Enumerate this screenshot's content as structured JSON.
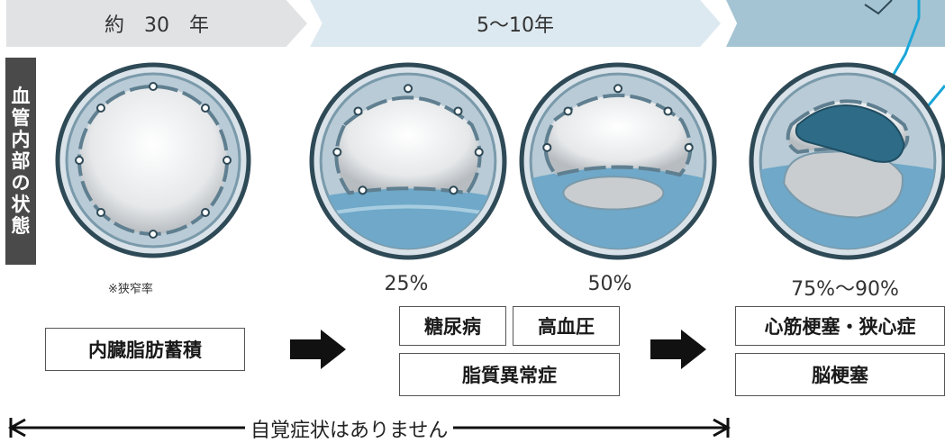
{
  "timeline": {
    "stage1": "約　30　年",
    "stage2": "5〜10年",
    "stage3": ""
  },
  "side_label": "血管内部の状態",
  "stenosis_note": "※狭窄率",
  "percentages": [
    "25%",
    "50%",
    "75%〜90%"
  ],
  "conditions": {
    "visceral_fat": "内臓脂肪蓄積",
    "diabetes": "糖尿病",
    "hypertension": "高血圧",
    "dyslipidemia": "脂質異常症",
    "heart": "心筋梗塞・狭心症",
    "stroke": "脳梗塞"
  },
  "footer": "自覚症状はありません",
  "colors": {
    "vessel_ring": "#7a9aab",
    "vessel_outline": "#2f4a57",
    "plaque_blue": "#6fa8c8",
    "plaque_gray": "#c9cdd0",
    "clot_dark": "#2e6b86",
    "callout": "#1aa6d8"
  }
}
